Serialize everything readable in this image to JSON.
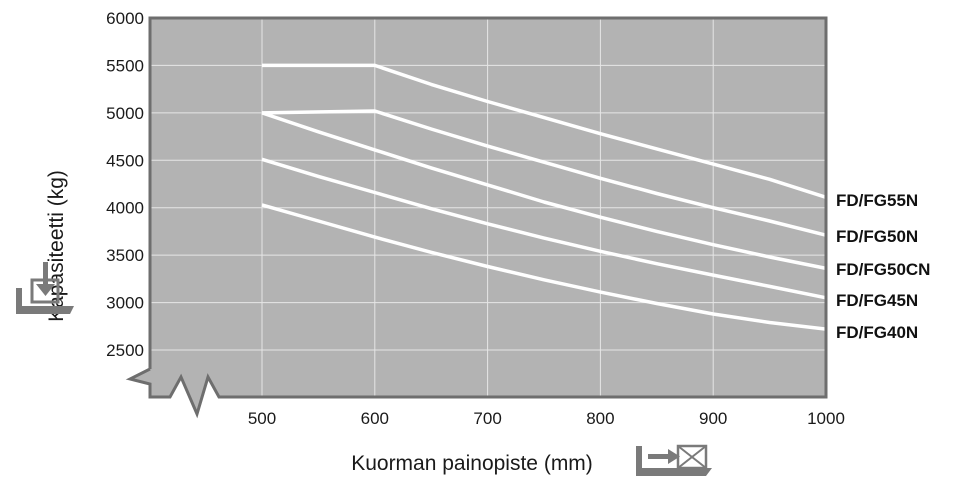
{
  "colors": {
    "plot_bg": "#b3b3b3",
    "frame": "#6e6e6e",
    "grid": "#e6e6e6",
    "line": "#ffffff",
    "icon": "#7a7a7a"
  },
  "icons": [
    "load-down-icon",
    "load-center-icon"
  ],
  "chart_data": {
    "type": "line",
    "title": "",
    "xlabel": "Kuorman painopiste (mm)",
    "ylabel": "Kapasiteetti (kg)",
    "xlim": [
      400,
      1000
    ],
    "ylim": [
      2000,
      6000
    ],
    "axis_break": "both",
    "grid": true,
    "x_ticks": [
      {
        "value": 500,
        "label": "500"
      },
      {
        "value": 600,
        "label": "600"
      },
      {
        "value": 700,
        "label": "700"
      },
      {
        "value": 800,
        "label": "800"
      },
      {
        "value": 900,
        "label": "900"
      },
      {
        "value": 1000,
        "label": "1000"
      }
    ],
    "y_ticks": [
      {
        "value": 2500,
        "label": "2500"
      },
      {
        "value": 3000,
        "label": "3000"
      },
      {
        "value": 3500,
        "label": "3500"
      },
      {
        "value": 4000,
        "label": "4000"
      },
      {
        "value": 4500,
        "label": "4500"
      },
      {
        "value": 5000,
        "label": "5000"
      },
      {
        "value": 5500,
        "label": "5500"
      },
      {
        "value": 6000,
        "label": "6000"
      }
    ],
    "series": [
      {
        "name": "FD/FG55N",
        "points": [
          [
            500,
            5500
          ],
          [
            600,
            5500
          ],
          [
            650,
            5300
          ],
          [
            700,
            5120
          ],
          [
            750,
            4950
          ],
          [
            800,
            4780
          ],
          [
            850,
            4620
          ],
          [
            900,
            4460
          ],
          [
            950,
            4300
          ],
          [
            1000,
            4110
          ]
        ]
      },
      {
        "name": "FD/FG50N",
        "points": [
          [
            500,
            5000
          ],
          [
            600,
            5020
          ],
          [
            650,
            4830
          ],
          [
            700,
            4650
          ],
          [
            750,
            4480
          ],
          [
            800,
            4310
          ],
          [
            850,
            4150
          ],
          [
            900,
            4000
          ],
          [
            950,
            3860
          ],
          [
            1000,
            3710
          ]
        ]
      },
      {
        "name": "FD/FG50CN",
        "points": [
          [
            500,
            5000
          ],
          [
            550,
            4800
          ],
          [
            600,
            4610
          ],
          [
            650,
            4420
          ],
          [
            700,
            4240
          ],
          [
            750,
            4060
          ],
          [
            800,
            3900
          ],
          [
            850,
            3750
          ],
          [
            900,
            3610
          ],
          [
            950,
            3480
          ],
          [
            1000,
            3360
          ]
        ]
      },
      {
        "name": "FD/FG45N",
        "points": [
          [
            500,
            4510
          ],
          [
            550,
            4330
          ],
          [
            600,
            4160
          ],
          [
            650,
            3990
          ],
          [
            700,
            3830
          ],
          [
            750,
            3680
          ],
          [
            800,
            3540
          ],
          [
            850,
            3410
          ],
          [
            900,
            3290
          ],
          [
            950,
            3170
          ],
          [
            1000,
            3050
          ]
        ]
      },
      {
        "name": "FD/FG40N",
        "points": [
          [
            500,
            4030
          ],
          [
            550,
            3860
          ],
          [
            600,
            3690
          ],
          [
            650,
            3530
          ],
          [
            700,
            3380
          ],
          [
            750,
            3240
          ],
          [
            800,
            3110
          ],
          [
            850,
            2990
          ],
          [
            900,
            2880
          ],
          [
            950,
            2790
          ],
          [
            1000,
            2720
          ]
        ]
      }
    ]
  }
}
